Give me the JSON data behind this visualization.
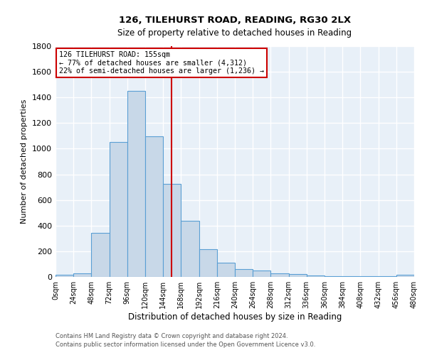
{
  "title1": "126, TILEHURST ROAD, READING, RG30 2LX",
  "title2": "Size of property relative to detached houses in Reading",
  "xlabel": "Distribution of detached houses by size in Reading",
  "ylabel": "Number of detached properties",
  "footnote1": "Contains HM Land Registry data © Crown copyright and database right 2024.",
  "footnote2": "Contains public sector information licensed under the Open Government Licence v3.0.",
  "bin_edges": [
    0,
    24,
    48,
    72,
    96,
    120,
    144,
    168,
    192,
    216,
    240,
    264,
    288,
    312,
    336,
    360,
    384,
    408,
    432,
    456,
    480
  ],
  "bar_heights": [
    15,
    30,
    345,
    1050,
    1450,
    1095,
    725,
    435,
    215,
    110,
    60,
    50,
    30,
    20,
    10,
    8,
    5,
    5,
    5,
    15
  ],
  "bar_color": "#c8d8e8",
  "bar_edge_color": "#5a9fd4",
  "property_size": 155,
  "vline_color": "#cc0000",
  "annotation_text": "126 TILEHURST ROAD: 155sqm\n← 77% of detached houses are smaller (4,312)\n22% of semi-detached houses are larger (1,236) →",
  "annotation_box_color": "#ffffff",
  "annotation_box_edge_color": "#cc0000",
  "ylim": [
    0,
    1800
  ],
  "xlim": [
    0,
    480
  ],
  "yticks": [
    0,
    200,
    400,
    600,
    800,
    1000,
    1200,
    1400,
    1600,
    1800
  ],
  "xtick_labels": [
    "0sqm",
    "24sqm",
    "48sqm",
    "72sqm",
    "96sqm",
    "120sqm",
    "144sqm",
    "168sqm",
    "192sqm",
    "216sqm",
    "240sqm",
    "264sqm",
    "288sqm",
    "312sqm",
    "336sqm",
    "360sqm",
    "384sqm",
    "408sqm",
    "432sqm",
    "456sqm",
    "480sqm"
  ],
  "background_color": "#e8f0f8",
  "grid_color": "#ffffff"
}
